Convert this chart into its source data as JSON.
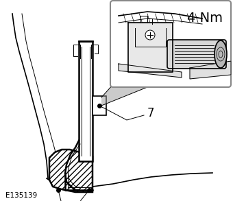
{
  "background_color": "#ffffff",
  "figure_width": 3.4,
  "figure_height": 2.93,
  "dpi": 100,
  "label_torque": "4 Nm",
  "label_ref": "E135139",
  "line_color": "#000000",
  "gray_mid": "#888888",
  "gray_light": "#cccccc",
  "hatch_fill": "#d0d0d0"
}
